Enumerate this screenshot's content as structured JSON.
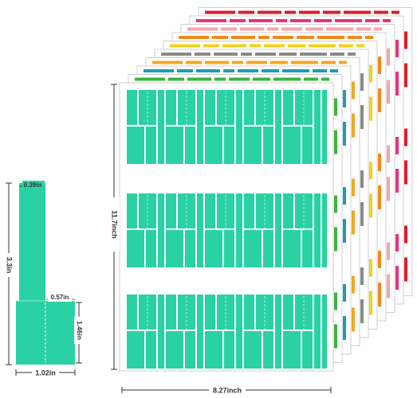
{
  "colors": {
    "teal": "#2ad1a4",
    "sheet_stack": [
      "#d71f2a",
      "#e8337e",
      "#f4a6a8",
      "#f08a1c",
      "#f0d21c",
      "#8a8a8a",
      "#f5a623",
      "#1f9bb4",
      "#3cb43c"
    ],
    "sheet_border": "#cfcfcf",
    "dimension_line": "#333333"
  },
  "single_label": {
    "top_width": "0.39in",
    "height": "3.3in",
    "flag_width": "0.57in",
    "flag_height": "1.46in",
    "bottom_width": "1.02in"
  },
  "front_sheet": {
    "height": "11.7inch",
    "width": "8.27inch",
    "label_rows": 3,
    "label_groups_per_row": 5
  }
}
